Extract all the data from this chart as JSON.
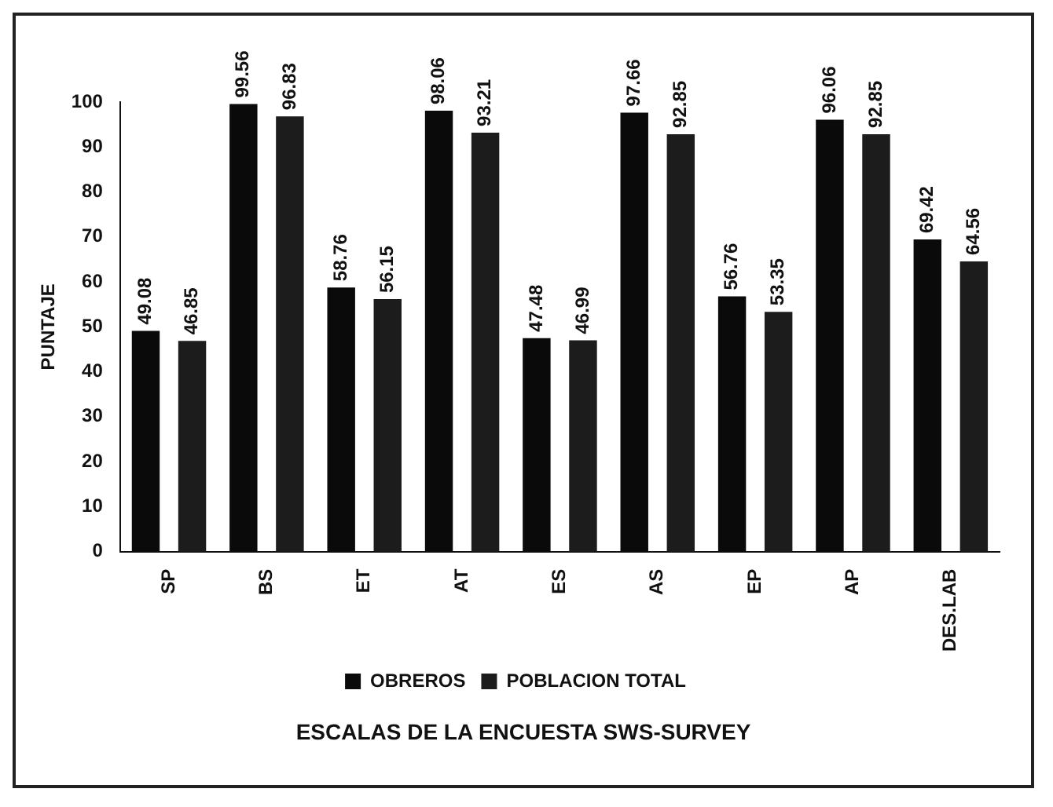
{
  "chart_data": {
    "type": "bar",
    "ylabel": "PUNTAJE",
    "xlabel": "ESCALAS DE LA ENCUESTA SWS-SURVEY",
    "categories": [
      "SP",
      "BS",
      "ET",
      "AT",
      "ES",
      "AS",
      "EP",
      "AP",
      "DES.LAB"
    ],
    "series": [
      {
        "name": "OBREROS",
        "color": "#0a0a0a",
        "values": [
          49.08,
          99.56,
          58.76,
          98.06,
          47.48,
          97.66,
          56.76,
          96.06,
          69.42
        ]
      },
      {
        "name": "POBLACION TOTAL",
        "color": "#1c1c1c",
        "values": [
          46.85,
          96.83,
          56.15,
          93.21,
          46.99,
          92.85,
          53.35,
          92.85,
          64.56
        ]
      }
    ],
    "ylim": [
      0,
      100
    ],
    "yticks": [
      0,
      10,
      20,
      30,
      40,
      50,
      60,
      70,
      80,
      90,
      100
    ],
    "grid": false,
    "legend": "bottom",
    "data_labels": true
  }
}
